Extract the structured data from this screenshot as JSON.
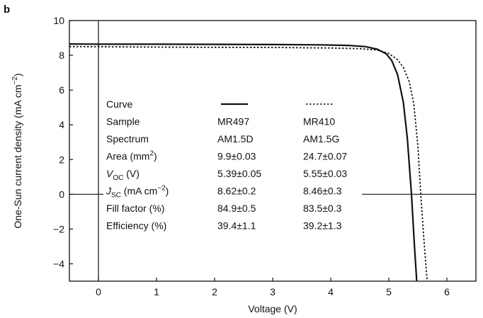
{
  "panel_label": "b",
  "chart_data": {
    "type": "line",
    "title": "",
    "xlabel": "Voltage (V)",
    "ylabel": "One-Sun current density (mA cm−2)",
    "xlim": [
      -0.5,
      6.5
    ],
    "ylim": [
      -5,
      10
    ],
    "xticks": [
      0,
      1,
      2,
      3,
      4,
      5,
      6
    ],
    "yticks": [
      -4,
      -2,
      0,
      2,
      4,
      6,
      8,
      10
    ],
    "grid": false,
    "series": [
      {
        "name": "MR497",
        "style": "solid",
        "color": "#111111",
        "x": [
          -0.5,
          0,
          1,
          2,
          3,
          3.8,
          4.3,
          4.6,
          4.8,
          4.95,
          5.05,
          5.15,
          5.25,
          5.32,
          5.39,
          5.44,
          5.48
        ],
        "y": [
          8.65,
          8.64,
          8.64,
          8.63,
          8.62,
          8.6,
          8.57,
          8.5,
          8.35,
          8.1,
          7.7,
          6.9,
          5.3,
          3.2,
          0.0,
          -2.9,
          -5.0
        ]
      },
      {
        "name": "MR410",
        "style": "dotted",
        "color": "#111111",
        "x": [
          -0.5,
          0,
          1,
          2,
          3,
          4,
          4.5,
          4.8,
          5.0,
          5.15,
          5.25,
          5.35,
          5.43,
          5.5,
          5.55,
          5.6,
          5.66
        ],
        "y": [
          8.5,
          8.49,
          8.47,
          8.46,
          8.45,
          8.42,
          8.38,
          8.3,
          8.1,
          7.75,
          7.3,
          6.5,
          5.2,
          2.8,
          0.0,
          -2.4,
          -5.0
        ]
      }
    ]
  },
  "table": {
    "header_label": "Curve",
    "rows": [
      {
        "label": "Sample",
        "label_sub": "",
        "label_tail": "",
        "c1": "MR497",
        "c2": "MR410"
      },
      {
        "label": "Spectrum",
        "label_sub": "",
        "label_tail": "",
        "c1": "AM1.5D",
        "c2": "AM1.5G"
      },
      {
        "label": "Area (mm",
        "label_sub": "",
        "label_tail": "2)",
        "c1": "9.9±0.03",
        "c2": "24.7±0.07"
      },
      {
        "label": "V",
        "label_sub": "OC",
        "label_tail": " (V)",
        "c1": "5.39±0.05",
        "c2": "5.55±0.03"
      },
      {
        "label": "J",
        "label_sub": "SC",
        "label_tail": " (mA cm−2)",
        "c1": "8.62±0.2",
        "c2": "8.46±0.3"
      },
      {
        "label": "Fill factor (%)",
        "label_sub": "",
        "label_tail": "",
        "c1": "84.9±0.5",
        "c2": "83.5±0.3"
      },
      {
        "label": "Efficiency (%)",
        "label_sub": "",
        "label_tail": "",
        "c1": "39.4±1.1",
        "c2": "39.2±1.3"
      }
    ]
  }
}
